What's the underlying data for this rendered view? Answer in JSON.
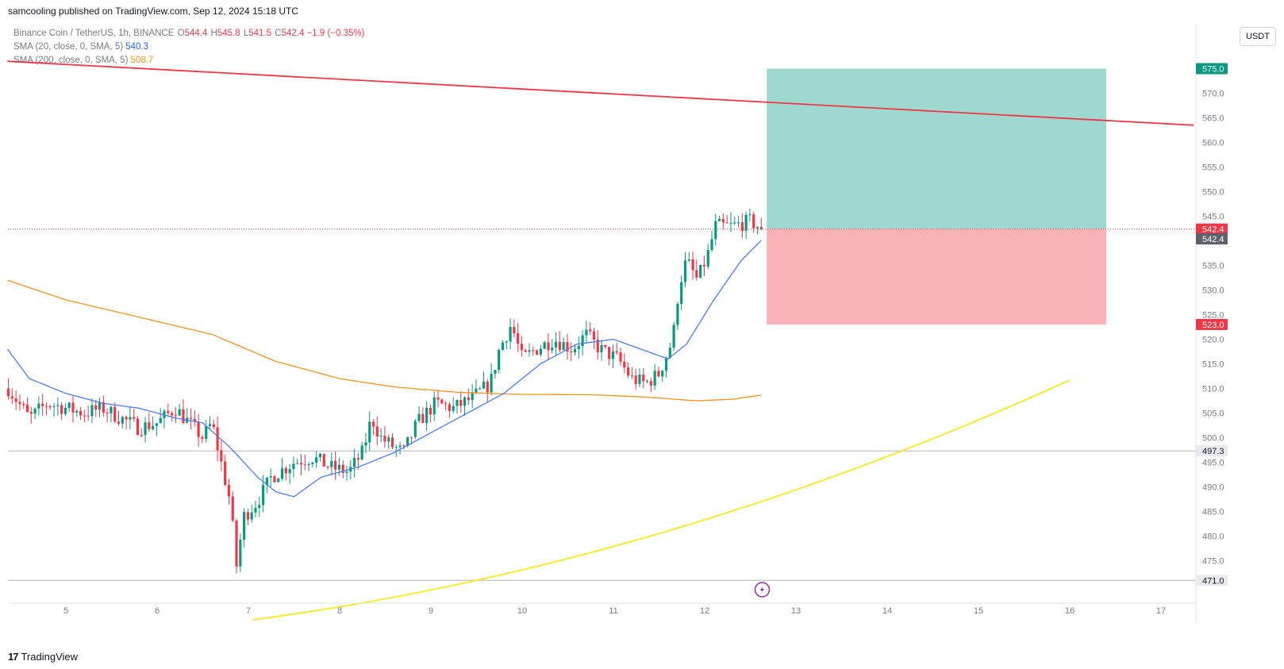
{
  "header": {
    "publish_line": "samcooling published on TradingView.com, Sep 12, 2024 15:18 UTC"
  },
  "legend": {
    "symbol": "Binance Coin / TetherUS, 1h, BINANCE",
    "ohlc": {
      "o_label": "O",
      "o": "544.4",
      "h_label": "H",
      "h": "545.8",
      "l_label": "L",
      "l": "541.5",
      "c_label": "C",
      "c": "542.4",
      "change": "−1.9 (−0.35%)"
    },
    "sma20": {
      "label": "SMA (20, close, 0, SMA, 5)",
      "value": "540.3"
    },
    "sma200": {
      "label": "SMA (200, close, 0, SMA, 5)",
      "value": "508.7"
    }
  },
  "currency_button": "USDT",
  "footer": {
    "brand": "TradingView",
    "brand_mark": "17"
  },
  "colors": {
    "up": "#089981",
    "down": "#f23645",
    "sma20": "#4c7cf3",
    "sma200": "#f7931a",
    "trendline_top": "#f23645",
    "trendline_bottom": "#f5ea1e",
    "profit_zone": "#9ed9d1",
    "loss_zone": "#f8b1b6",
    "price_line": "#f23645"
  },
  "chart_data": {
    "type": "candlestick",
    "symbol": "BNBUSDT",
    "interval": "1h",
    "ylim": [
      465,
      580
    ],
    "y_ticks": [
      475,
      480,
      485,
      490,
      495,
      500,
      505,
      510,
      515,
      520,
      525,
      530,
      535,
      540,
      545,
      550,
      555,
      560,
      565,
      570
    ],
    "x_axis_labels": [
      "5",
      "6",
      "7",
      "8",
      "9",
      "10",
      "11",
      "12",
      "13",
      "14",
      "15",
      "16",
      "17"
    ],
    "x_axis_range_days": [
      4.36,
      17.5
    ],
    "last_candle_day": 12.63,
    "candle_close_anchors": [
      [
        4.37,
        510
      ],
      [
        4.6,
        504
      ],
      [
        4.8,
        507
      ],
      [
        5.0,
        506
      ],
      [
        5.2,
        505
      ],
      [
        5.4,
        506
      ],
      [
        5.6,
        504
      ],
      [
        5.8,
        502
      ],
      [
        6.0,
        503
      ],
      [
        6.2,
        506
      ],
      [
        6.35,
        503
      ],
      [
        6.5,
        500
      ],
      [
        6.6,
        503
      ],
      [
        6.7,
        495
      ],
      [
        6.8,
        487
      ],
      [
        6.87,
        474
      ],
      [
        6.95,
        484
      ],
      [
        7.1,
        487
      ],
      [
        7.25,
        492
      ],
      [
        7.5,
        495
      ],
      [
        7.7,
        496
      ],
      [
        7.9,
        494
      ],
      [
        8.1,
        493
      ],
      [
        8.25,
        497
      ],
      [
        8.35,
        504
      ],
      [
        8.45,
        500
      ],
      [
        8.6,
        498
      ],
      [
        8.7,
        497
      ],
      [
        8.85,
        503
      ],
      [
        9.05,
        507
      ],
      [
        9.25,
        506
      ],
      [
        9.45,
        508
      ],
      [
        9.65,
        511
      ],
      [
        9.75,
        518
      ],
      [
        9.88,
        523
      ],
      [
        10.0,
        516
      ],
      [
        10.15,
        518
      ],
      [
        10.35,
        520
      ],
      [
        10.55,
        518
      ],
      [
        10.7,
        521
      ],
      [
        10.85,
        518
      ],
      [
        11.05,
        516
      ],
      [
        11.2,
        512
      ],
      [
        11.35,
        511
      ],
      [
        11.5,
        513
      ],
      [
        11.65,
        520
      ],
      [
        11.72,
        531
      ],
      [
        11.8,
        536
      ],
      [
        11.92,
        532
      ],
      [
        12.03,
        537
      ],
      [
        12.12,
        543
      ],
      [
        12.3,
        543
      ],
      [
        12.5,
        544
      ],
      [
        12.63,
        542.4
      ]
    ],
    "sma20_anchors": [
      [
        4.36,
        518
      ],
      [
        4.6,
        512
      ],
      [
        5.0,
        509
      ],
      [
        5.4,
        507
      ],
      [
        5.8,
        506
      ],
      [
        6.2,
        504
      ],
      [
        6.5,
        503
      ],
      [
        6.8,
        498
      ],
      [
        7.1,
        492
      ],
      [
        7.3,
        489
      ],
      [
        7.5,
        488
      ],
      [
        7.8,
        492
      ],
      [
        8.2,
        494
      ],
      [
        8.6,
        497
      ],
      [
        9.0,
        501
      ],
      [
        9.4,
        505
      ],
      [
        9.8,
        509
      ],
      [
        10.2,
        515
      ],
      [
        10.6,
        519
      ],
      [
        11.0,
        520
      ],
      [
        11.3,
        518
      ],
      [
        11.6,
        516
      ],
      [
        11.8,
        519
      ],
      [
        12.1,
        528
      ],
      [
        12.4,
        536
      ],
      [
        12.63,
        540.3
      ]
    ],
    "sma200_anchors": [
      [
        4.36,
        532
      ],
      [
        5.0,
        528
      ],
      [
        5.8,
        524.5
      ],
      [
        6.6,
        521
      ],
      [
        7.3,
        515.5
      ],
      [
        8.0,
        512
      ],
      [
        8.6,
        510.3
      ],
      [
        9.3,
        509.2
      ],
      [
        10.0,
        508.8
      ],
      [
        10.8,
        508.7
      ],
      [
        11.4,
        508.2
      ],
      [
        11.9,
        507.5
      ],
      [
        12.3,
        507.8
      ],
      [
        12.63,
        508.7
      ]
    ],
    "trendline_top": [
      [
        4.36,
        576.5
      ],
      [
        17.36,
        563.5
      ]
    ],
    "trendline_bottom": [
      [
        7.05,
        463
      ],
      [
        16.0,
        511.7
      ]
    ],
    "position": {
      "type": "long",
      "entry": 542.4,
      "take_profit": 575.0,
      "stop_loss": 523.0,
      "start_day": 12.68,
      "end_day": 16.4
    },
    "horizontal_lines": [
      497.3,
      471.0
    ],
    "price_labels": [
      {
        "value": "575.0",
        "price": 575.0,
        "style": "tp"
      },
      {
        "value": "542.4",
        "price": 542.4,
        "style": "last"
      },
      {
        "value": "542.4",
        "price": 540.4,
        "style": "entry"
      },
      {
        "value": "523.0",
        "price": 523.0,
        "style": "sl"
      },
      {
        "value": "497.3",
        "price": 497.3,
        "style": "hline"
      },
      {
        "value": "471.0",
        "price": 471.0,
        "style": "hline"
      }
    ],
    "event_marker_day": 12.63
  }
}
